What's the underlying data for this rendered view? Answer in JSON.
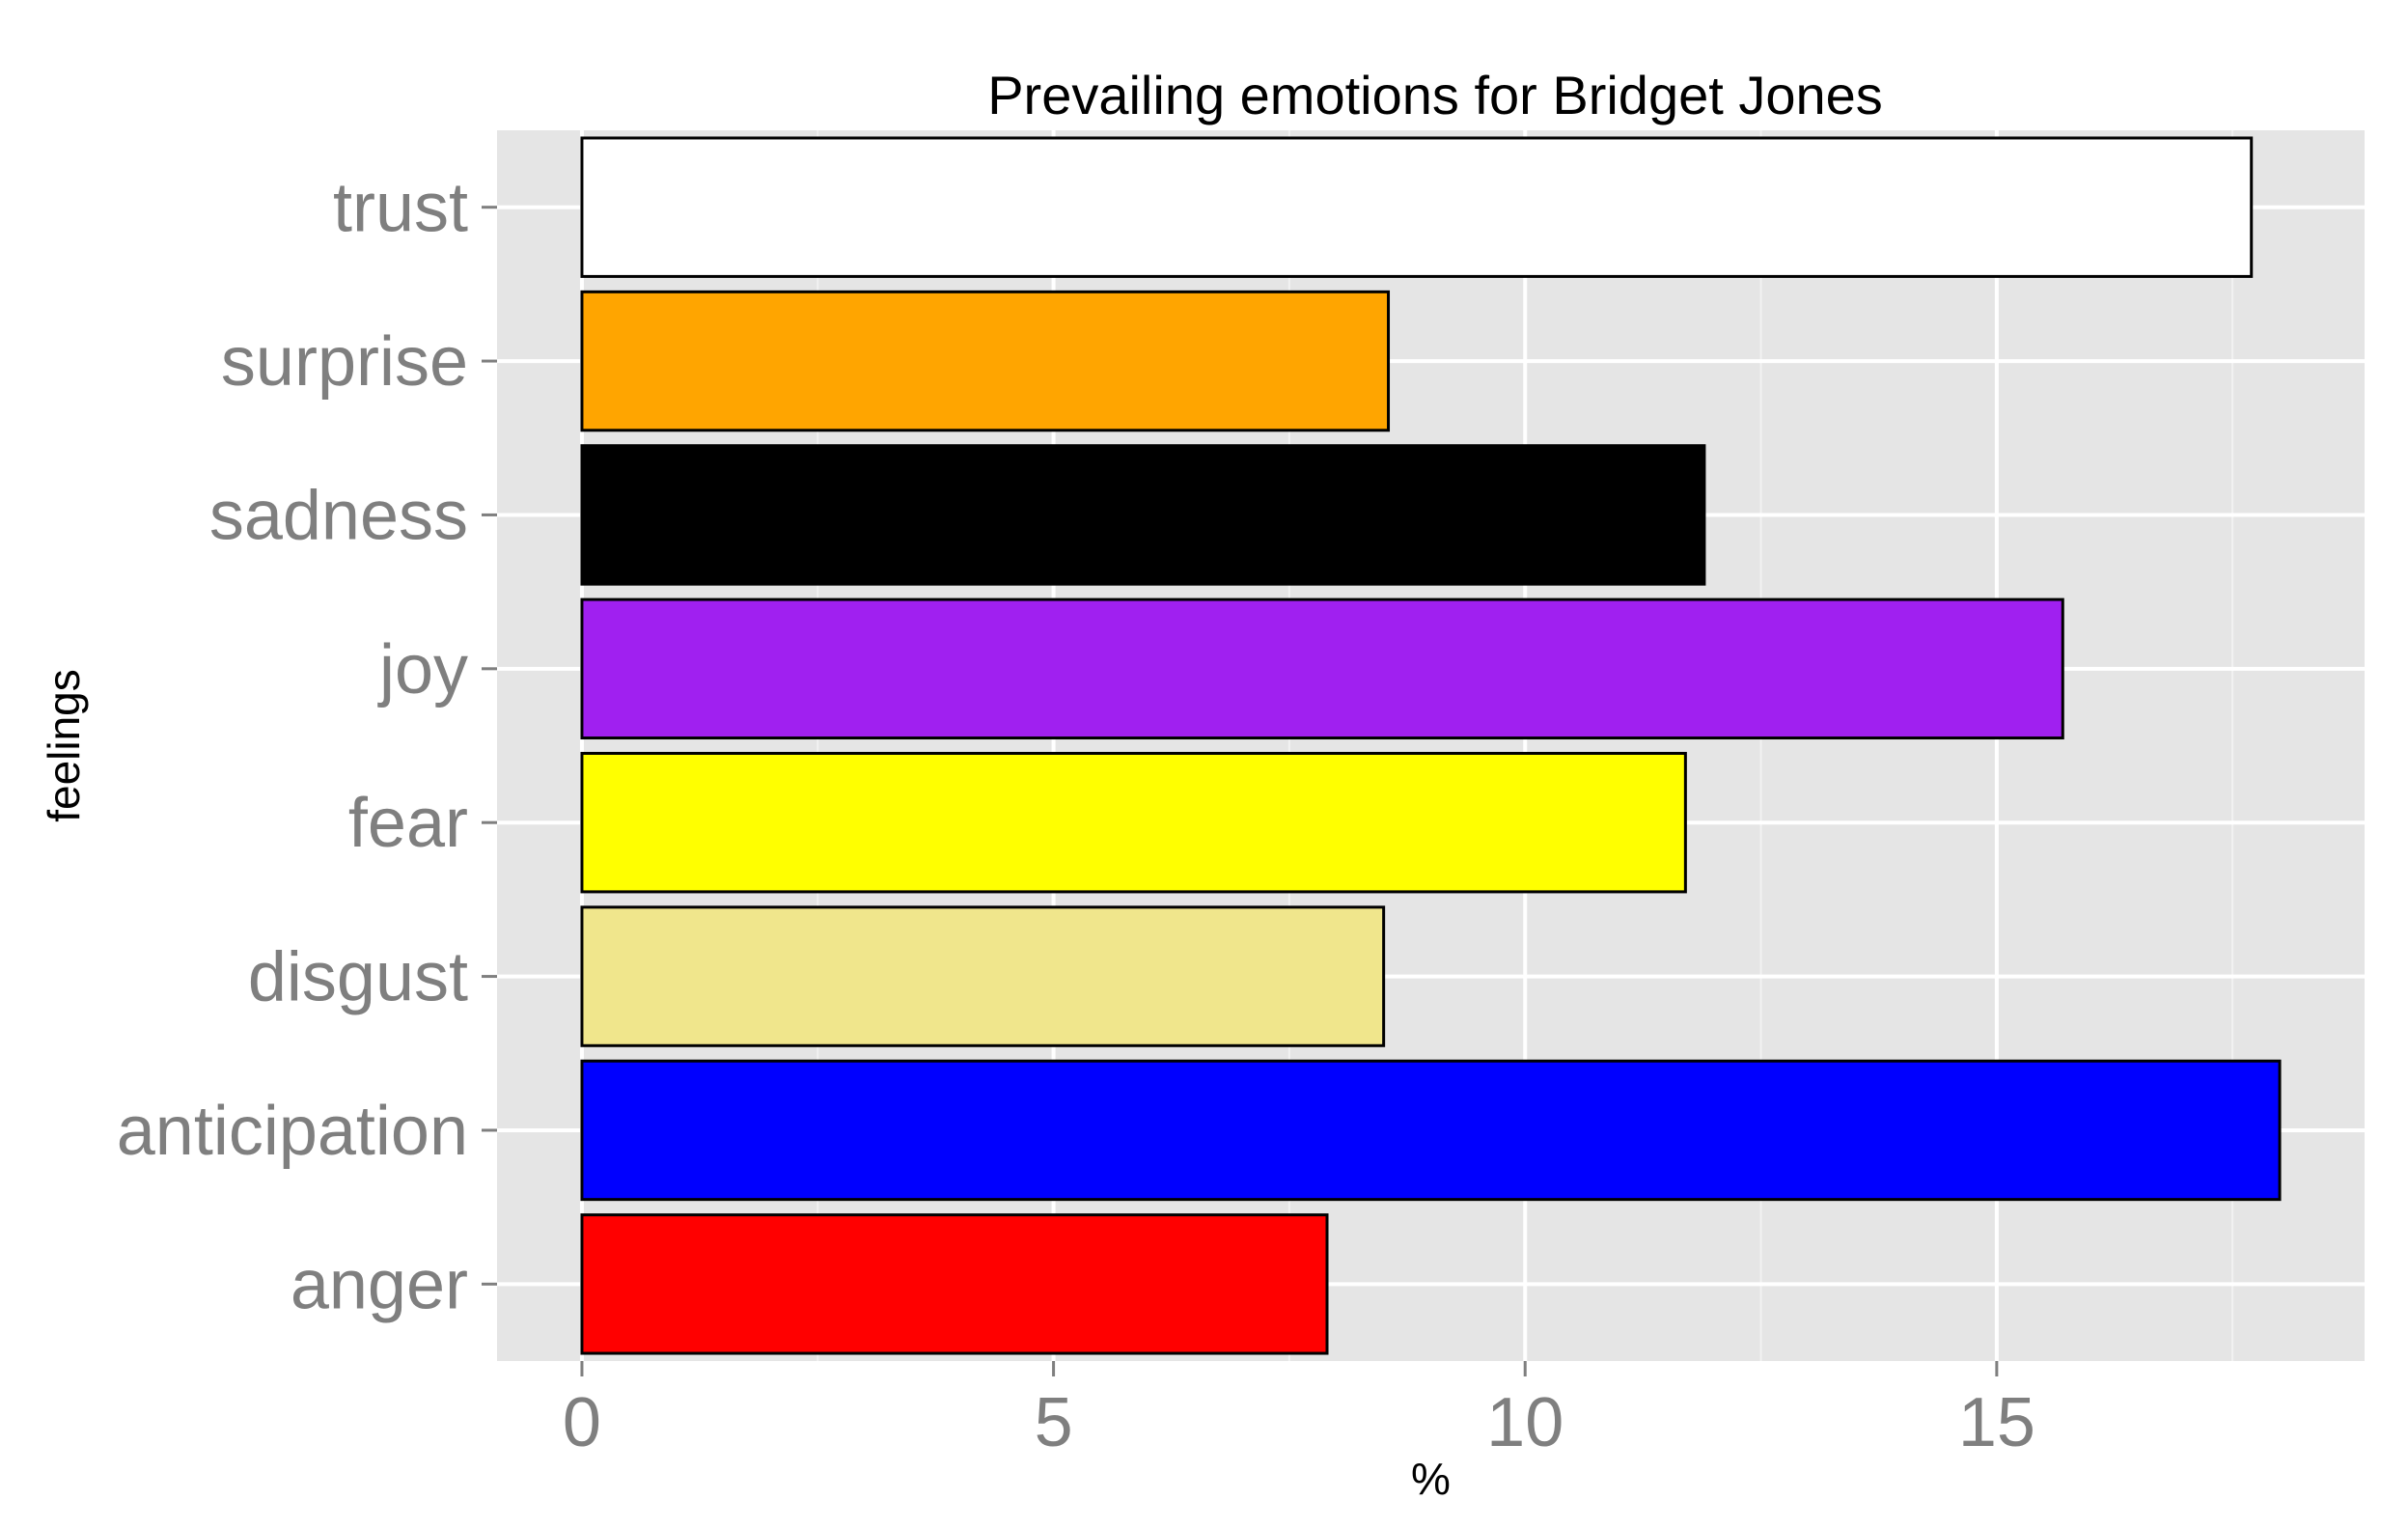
{
  "chart_data": {
    "type": "bar",
    "orientation": "horizontal",
    "title": "Prevailing emotions for Bridget Jones",
    "xlabel": "%",
    "ylabel": "feelings",
    "xlim": [
      -0.9,
      18.9
    ],
    "x_ticks": [
      0,
      5,
      10,
      15
    ],
    "x_tick_labels": [
      "0",
      "5",
      "10",
      "15"
    ],
    "grid": true,
    "legend": "none",
    "categories": [
      "anger",
      "anticipation",
      "disgust",
      "fear",
      "joy",
      "sadness",
      "surprise",
      "trust"
    ],
    "values": [
      7.9,
      18.0,
      8.5,
      11.7,
      15.7,
      11.9,
      8.55,
      17.7
    ],
    "colors": [
      "#FF0000",
      "#0000FF",
      "#F0E68C",
      "#FFFF00",
      "#A020F0",
      "#000000",
      "#FFA500",
      "#FFFFFF"
    ],
    "panel_background": "#E5E5E5",
    "bar_outline": "#000000"
  }
}
